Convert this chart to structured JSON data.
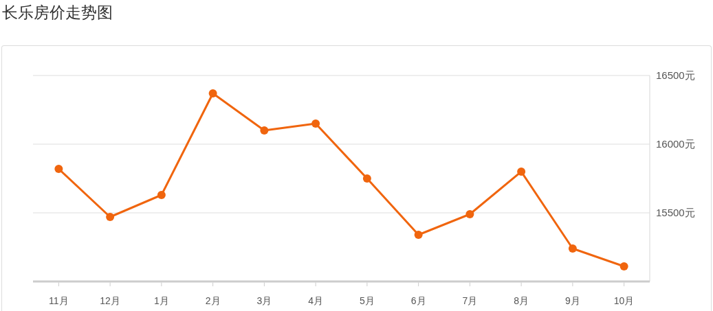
{
  "chart_data": {
    "type": "line",
    "title": "长乐房价走势图",
    "categories": [
      "11月",
      "12月",
      "1月",
      "2月",
      "3月",
      "4月",
      "5月",
      "6月",
      "7月",
      "8月",
      "9月",
      "10月"
    ],
    "series": [
      {
        "color": "#f0650e",
        "values": [
          15820,
          15470,
          15630,
          16370,
          16100,
          16150,
          15750,
          15340,
          15490,
          15800,
          15240,
          15110
        ]
      }
    ],
    "ylim": [
      15000,
      16500
    ],
    "yticks": [
      {
        "value": 15500,
        "label": "15500元"
      },
      {
        "value": 16000,
        "label": "16000元"
      },
      {
        "value": 16500,
        "label": "16500元"
      }
    ],
    "grid": "y",
    "marker": "circle",
    "line_style": "solid"
  }
}
